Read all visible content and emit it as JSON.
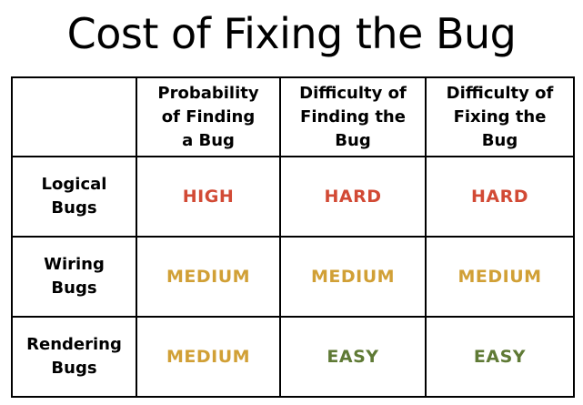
{
  "title": "Cost of Fixing the Bug",
  "colors": {
    "high": "#d24a35",
    "medium": "#d1a036",
    "easy": "#5f7a35"
  },
  "columns": [
    [
      "Probability",
      "of Finding",
      "a Bug"
    ],
    [
      "Difficulty of",
      "Finding the",
      "Bug"
    ],
    [
      "Difficulty of",
      "Fixing the",
      "Bug"
    ]
  ],
  "rows": [
    {
      "label": [
        "Logical",
        "Bugs"
      ],
      "cells": [
        {
          "text": "HIGH",
          "level": "high"
        },
        {
          "text": "HARD",
          "level": "high"
        },
        {
          "text": "HARD",
          "level": "high"
        }
      ]
    },
    {
      "label": [
        "Wiring",
        "Bugs"
      ],
      "cells": [
        {
          "text": "MEDIUM",
          "level": "medium"
        },
        {
          "text": "MEDIUM",
          "level": "medium"
        },
        {
          "text": "MEDIUM",
          "level": "medium"
        }
      ]
    },
    {
      "label": [
        "Rendering",
        "Bugs"
      ],
      "cells": [
        {
          "text": "MEDIUM",
          "level": "medium"
        },
        {
          "text": "EASY",
          "level": "easy"
        },
        {
          "text": "EASY",
          "level": "easy"
        }
      ]
    }
  ]
}
